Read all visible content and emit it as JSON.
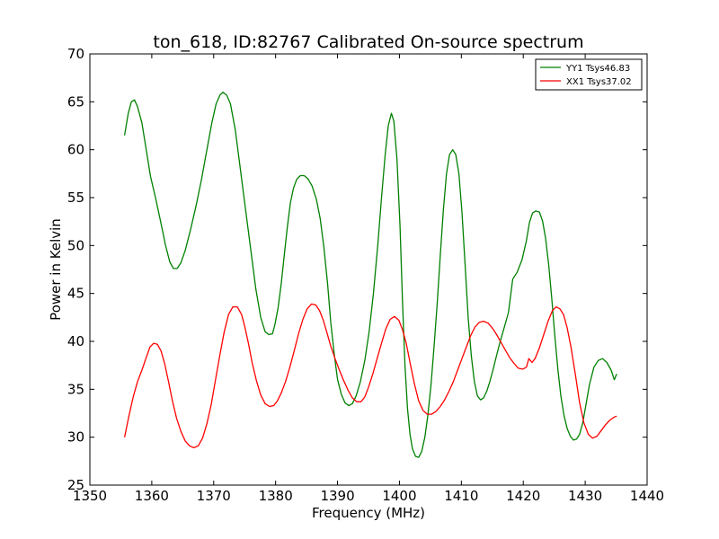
{
  "chart_data": {
    "type": "line",
    "title": "ton_618, ID:82767 Calibrated On-source spectrum",
    "xlabel": "Frequency (MHz)",
    "ylabel": "Power in Kelvin",
    "xlim": [
      1350,
      1440
    ],
    "ylim": [
      25,
      70
    ],
    "xticks": [
      1350,
      1360,
      1370,
      1380,
      1390,
      1400,
      1410,
      1420,
      1430,
      1440
    ],
    "yticks": [
      25,
      30,
      35,
      40,
      45,
      50,
      55,
      60,
      65,
      70
    ],
    "xtick_labels": [
      "1350",
      "1360",
      "1370",
      "1380",
      "1390",
      "1400",
      "1410",
      "1420",
      "1430",
      "1440"
    ],
    "ytick_labels": [
      "25",
      "30",
      "35",
      "40",
      "45",
      "50",
      "55",
      "60",
      "65",
      "70"
    ],
    "grid": false,
    "legend_position": "top-right",
    "series": [
      {
        "name": "YY1 Tsys46.83",
        "color": "#008000",
        "x": [
          1355.6,
          1356.2,
          1356.7,
          1357.2,
          1357.7,
          1358.4,
          1359.1,
          1359.8,
          1360.6,
          1361.4,
          1362.2,
          1362.9,
          1363.5,
          1364.1,
          1364.7,
          1365.4,
          1366.2,
          1367.1,
          1368.0,
          1368.9,
          1369.7,
          1370.4,
          1371.0,
          1371.5,
          1372.1,
          1372.7,
          1373.5,
          1374.3,
          1375.1,
          1376.0,
          1376.8,
          1377.6,
          1378.3,
          1378.9,
          1379.5,
          1379.9,
          1380.4,
          1380.9,
          1381.4,
          1381.9,
          1382.4,
          1382.9,
          1383.4,
          1384.0,
          1384.6,
          1385.2,
          1385.9,
          1386.6,
          1387.2,
          1387.8,
          1388.4,
          1388.9,
          1389.5,
          1390.0,
          1390.6,
          1391.2,
          1391.8,
          1392.4,
          1393.0,
          1393.7,
          1394.4,
          1395.1,
          1395.8,
          1396.5,
          1397.1,
          1397.7,
          1398.2,
          1398.7,
          1399.1,
          1399.6,
          1400.1,
          1400.5,
          1400.9,
          1401.3,
          1401.7,
          1402.1,
          1402.6,
          1403.1,
          1403.6,
          1404.1,
          1404.6,
          1405.1,
          1405.6,
          1406.1,
          1406.6,
          1407.1,
          1407.6,
          1408.1,
          1408.6,
          1409.1,
          1409.6,
          1410.1,
          1410.6,
          1411.1,
          1411.6,
          1412.1,
          1412.6,
          1413.1,
          1413.6,
          1414.1,
          1414.6,
          1415.1,
          1415.6,
          1416.2,
          1416.9,
          1417.6,
          1418.3,
          1419.0,
          1419.8,
          1420.5,
          1421.0,
          1421.5,
          1422.0,
          1422.6,
          1423.1,
          1423.6,
          1424.1,
          1424.6,
          1425.1,
          1425.6,
          1426.1,
          1426.6,
          1427.1,
          1427.6,
          1428.1,
          1428.6,
          1429.1,
          1429.6,
          1430.1,
          1430.7,
          1431.4,
          1432.1,
          1432.8,
          1433.5,
          1434.2,
          1434.7,
          1435.1
        ],
        "y": [
          61.5,
          63.8,
          65.0,
          65.2,
          64.5,
          62.8,
          60.0,
          57.2,
          55.0,
          52.6,
          50.1,
          48.3,
          47.6,
          47.6,
          48.2,
          49.5,
          51.5,
          54.0,
          56.8,
          60.0,
          62.8,
          64.8,
          65.7,
          66.0,
          65.7,
          64.8,
          62.0,
          58.0,
          54.0,
          49.5,
          45.5,
          42.5,
          41.0,
          40.7,
          40.8,
          41.8,
          43.5,
          46.0,
          49.0,
          52.0,
          54.5,
          56.0,
          56.9,
          57.3,
          57.3,
          57.0,
          56.2,
          54.8,
          52.8,
          49.8,
          46.0,
          42.0,
          38.5,
          36.0,
          34.5,
          33.6,
          33.3,
          33.5,
          34.3,
          35.8,
          38.0,
          41.0,
          45.0,
          50.0,
          55.0,
          59.5,
          62.5,
          63.8,
          63.0,
          59.0,
          52.0,
          44.0,
          37.5,
          33.0,
          30.3,
          28.8,
          28.0,
          27.9,
          28.5,
          30.0,
          32.3,
          35.5,
          39.5,
          44.0,
          49.0,
          53.8,
          57.5,
          59.5,
          60.0,
          59.5,
          57.5,
          53.5,
          48.0,
          42.5,
          38.5,
          35.8,
          34.3,
          33.9,
          34.1,
          34.8,
          35.8,
          37.0,
          38.3,
          39.8,
          41.4,
          43.0,
          46.5,
          47.2,
          48.5,
          50.5,
          52.4,
          53.4,
          53.6,
          53.5,
          52.6,
          50.8,
          48.0,
          44.5,
          40.5,
          37.0,
          34.2,
          32.2,
          30.9,
          30.1,
          29.7,
          29.8,
          30.3,
          31.5,
          33.3,
          35.5,
          37.3,
          38.0,
          38.2,
          37.8,
          37.0,
          36.0,
          36.6
        ],
        "y_fix": [
          61.5,
          63.8,
          65.0,
          65.2,
          64.5,
          62.8,
          60.0,
          57.2,
          55.0,
          52.6,
          50.1,
          48.3,
          47.6,
          47.6,
          48.2,
          49.5,
          51.5,
          54.0,
          56.8,
          60.0,
          62.8,
          64.8,
          65.7,
          66.0,
          65.7,
          64.8,
          62.0,
          58.0,
          54.0,
          49.5,
          45.5,
          42.5,
          41.0,
          40.7,
          40.8,
          41.8,
          43.5,
          46.0,
          49.0,
          52.0,
          54.5,
          56.0,
          56.9,
          57.3,
          57.3,
          57.0,
          56.2,
          54.8,
          52.8,
          49.8,
          46.0,
          42.0,
          38.5,
          36.0,
          34.5,
          33.6,
          33.3,
          33.5,
          34.3,
          35.8,
          38.0,
          41.0,
          45.0,
          50.0,
          55.0,
          59.5,
          62.5,
          63.8,
          63.0,
          59.0,
          52.0,
          44.0,
          37.5,
          33.0,
          30.3,
          28.8,
          28.0,
          27.9,
          28.5,
          30.0,
          32.3,
          35.5,
          39.5,
          44.0,
          49.0,
          53.8,
          57.5,
          59.5,
          60.0,
          59.5,
          57.5,
          53.5,
          48.0,
          42.5,
          38.5,
          35.8,
          34.3,
          33.9,
          34.1,
          34.8,
          35.8,
          37.0,
          38.3,
          39.8,
          41.4,
          43.0,
          46.5,
          47.2,
          48.5,
          50.5,
          52.4,
          53.4,
          53.6,
          53.5,
          52.6,
          50.8,
          48.0,
          44.5,
          40.5,
          37.0,
          34.2,
          32.2,
          30.9,
          30.1,
          29.7,
          29.8,
          30.3,
          31.5,
          33.3,
          35.5,
          37.3,
          38.0,
          38.2,
          37.8,
          37.0,
          36.0,
          36.6
        ]
      },
      {
        "name": "XX1 Tsys37.02",
        "color": "#ff0000",
        "x": [
          1355.6,
          1356.3,
          1357.0,
          1357.7,
          1358.4,
          1359.1,
          1359.7,
          1360.3,
          1360.9,
          1361.5,
          1362.1,
          1362.7,
          1363.3,
          1364.0,
          1364.7,
          1365.4,
          1366.1,
          1366.8,
          1367.5,
          1368.2,
          1368.9,
          1369.6,
          1370.3,
          1371.0,
          1371.7,
          1372.4,
          1373.1,
          1373.8,
          1374.5,
          1375.0,
          1375.6,
          1376.2,
          1376.9,
          1377.6,
          1378.3,
          1379.0,
          1379.7,
          1380.3,
          1380.9,
          1381.6,
          1382.3,
          1383.0,
          1383.7,
          1384.4,
          1385.1,
          1385.8,
          1386.5,
          1387.1,
          1387.7,
          1388.3,
          1388.9,
          1389.6,
          1390.3,
          1391.0,
          1391.7,
          1392.4,
          1393.1,
          1393.8,
          1394.4,
          1395.0,
          1395.7,
          1396.4,
          1397.1,
          1397.8,
          1398.5,
          1399.2,
          1399.9,
          1400.5,
          1401.1,
          1401.7,
          1402.4,
          1403.1,
          1403.8,
          1404.5,
          1405.2,
          1405.9,
          1406.6,
          1407.3,
          1408.0,
          1408.7,
          1409.4,
          1410.1,
          1410.8,
          1411.5,
          1412.2,
          1412.9,
          1413.6,
          1414.3,
          1415.0,
          1415.7,
          1416.4,
          1417.1,
          1417.8,
          1418.5,
          1419.2,
          1419.9,
          1420.5,
          1420.9,
          1421.4,
          1421.9,
          1422.6,
          1423.3,
          1424.0,
          1424.7,
          1425.3,
          1425.9,
          1426.5,
          1427.1,
          1427.7,
          1428.4,
          1429.1,
          1429.8,
          1430.5,
          1431.2,
          1431.9,
          1432.6,
          1433.3,
          1434.0,
          1434.7,
          1435.1
        ],
        "y": [
          30.0,
          32.2,
          34.2,
          35.8,
          37.0,
          38.3,
          39.4,
          39.8,
          39.7,
          39.0,
          37.6,
          35.8,
          33.9,
          32.0,
          30.6,
          29.6,
          29.1,
          28.9,
          29.1,
          29.9,
          31.4,
          33.4,
          36.0,
          38.6,
          41.0,
          42.8,
          43.6,
          43.6,
          42.8,
          41.6,
          39.8,
          37.8,
          35.9,
          34.4,
          33.5,
          33.2,
          33.3,
          33.8,
          34.6,
          35.8,
          37.3,
          39.0,
          40.8,
          42.3,
          43.4,
          43.9,
          43.8,
          43.2,
          42.2,
          40.9,
          39.5,
          38.2,
          37.0,
          35.9,
          34.9,
          34.1,
          33.7,
          33.7,
          34.2,
          35.2,
          36.6,
          38.2,
          39.8,
          41.3,
          42.3,
          42.6,
          42.2,
          41.2,
          39.8,
          37.8,
          35.6,
          33.8,
          32.8,
          32.4,
          32.4,
          32.7,
          33.2,
          33.9,
          34.8,
          35.8,
          37.0,
          38.2,
          39.4,
          40.6,
          41.5,
          42.0,
          42.1,
          41.9,
          41.4,
          40.7,
          39.9,
          39.1,
          38.3,
          37.7,
          37.2,
          37.1,
          37.3,
          38.2,
          37.8,
          38.2,
          39.3,
          40.7,
          42.1,
          43.2,
          43.6,
          43.4,
          42.8,
          41.4,
          39.4,
          36.6,
          33.6,
          31.5,
          30.3,
          29.9,
          30.1,
          30.7,
          31.3,
          31.8,
          32.1,
          32.2
        ]
      }
    ]
  }
}
